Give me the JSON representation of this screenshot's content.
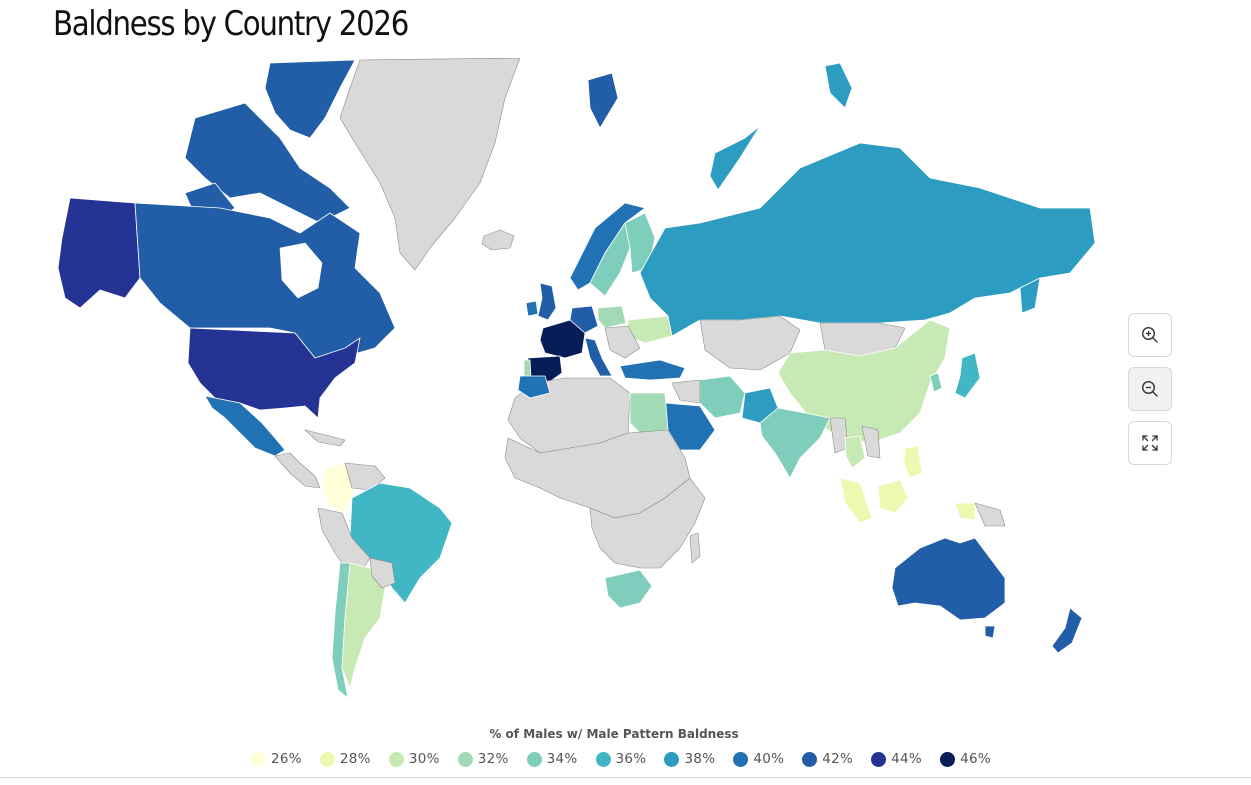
{
  "title": "Baldness by Country 2026",
  "colors": {
    "no_data": "#d9d9d9",
    "scale": [
      "#ffffd9",
      "#edf8b1",
      "#c7e9b4",
      "#a1dab4",
      "#7fcdbb",
      "#41b6c4",
      "#2c9cc0",
      "#2171b5",
      "#225ea8",
      "#253494",
      "#081d58"
    ]
  },
  "controls": {
    "zoom_in_icon": "zoom-in-icon",
    "zoom_out_icon": "zoom-out-icon",
    "fullscreen_icon": "fullscreen-icon"
  },
  "legend": {
    "title": "% of Males w/ Male Pattern Baldness",
    "items": [
      {
        "label": "26%",
        "color": "#ffffd9"
      },
      {
        "label": "28%",
        "color": "#edf8b1"
      },
      {
        "label": "30%",
        "color": "#c7e9b4"
      },
      {
        "label": "32%",
        "color": "#a1dab4"
      },
      {
        "label": "34%",
        "color": "#7fcdbb"
      },
      {
        "label": "36%",
        "color": "#41b6c4"
      },
      {
        "label": "38%",
        "color": "#2c9cc0"
      },
      {
        "label": "40%",
        "color": "#2171b5"
      },
      {
        "label": "42%",
        "color": "#225ea8"
      },
      {
        "label": "44%",
        "color": "#253494"
      },
      {
        "label": "46%",
        "color": "#081d58"
      }
    ]
  }
}
